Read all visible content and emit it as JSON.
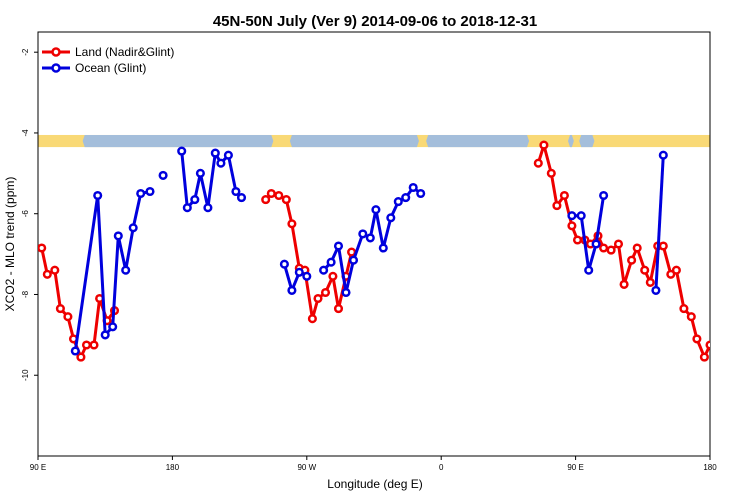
{
  "chart_data": {
    "type": "line",
    "title": "45N-50N July (Ver 9)   2014-09-06 to 2018-12-31",
    "xlabel": "Longitude (deg E)",
    "ylabel": "XCO2 - MLO trend (ppm)",
    "xlim": [
      90,
      450
    ],
    "ylim": [
      -12,
      -1.5
    ],
    "x_ticks": [
      {
        "value": 90,
        "label": "90 E"
      },
      {
        "value": 180,
        "label": "180"
      },
      {
        "value": 270,
        "label": "90 W"
      },
      {
        "value": 360,
        "label": "0"
      },
      {
        "value": 450,
        "label": "90 E"
      },
      {
        "value": 540,
        "label": "180"
      }
    ],
    "y_ticks": [
      {
        "value": -2,
        "label": "-2"
      },
      {
        "value": -4,
        "label": "-4"
      },
      {
        "value": -6,
        "label": "-6"
      },
      {
        "value": -8,
        "label": "-8"
      },
      {
        "value": -10,
        "label": "-10"
      }
    ],
    "legend_position": "top-left",
    "grid": false,
    "map_band": {
      "y_top": -4.05,
      "y_bottom": -4.35,
      "land_color": "#f9d976",
      "ocean_color": "#a4bedb"
    },
    "series": [
      {
        "name": "Land (Nadir&Glint)",
        "color": "#ee0000",
        "segments": [
          [
            [
              92,
              -6.85
            ],
            [
              95,
              -7.5
            ],
            [
              99,
              -7.4
            ],
            [
              102,
              -8.35
            ],
            [
              106,
              -8.55
            ],
            [
              109,
              -9.1
            ],
            [
              113,
              -9.55
            ],
            [
              116,
              -9.25
            ],
            [
              120,
              -9.25
            ],
            [
              123,
              -8.1
            ],
            [
              127,
              -8.65
            ],
            [
              131,
              -8.4
            ]
          ],
          [
            [
              212,
              -5.65
            ],
            [
              215,
              -5.5
            ],
            [
              219,
              -5.55
            ],
            [
              223,
              -5.65
            ],
            [
              226,
              -6.25
            ],
            [
              230,
              -7.35
            ],
            [
              233,
              -7.4
            ],
            [
              237,
              -8.6
            ],
            [
              240,
              -8.1
            ],
            [
              244,
              -7.95
            ],
            [
              248,
              -7.55
            ],
            [
              251,
              -8.35
            ],
            [
              255,
              -7.55
            ],
            [
              258,
              -6.95
            ]
          ],
          [
            [
              358,
              -4.75
            ],
            [
              361,
              -4.3
            ],
            [
              365,
              -5.0
            ],
            [
              368,
              -5.8
            ],
            [
              372,
              -5.55
            ],
            [
              376,
              -6.3
            ],
            [
              379,
              -6.65
            ],
            [
              383,
              -6.65
            ],
            [
              386,
              -6.75
            ],
            [
              390,
              -6.55
            ],
            [
              393,
              -6.85
            ],
            [
              397,
              -6.9
            ],
            [
              401,
              -6.75
            ],
            [
              404,
              -7.75
            ],
            [
              408,
              -7.15
            ],
            [
              411,
              -6.85
            ],
            [
              415,
              -7.4
            ],
            [
              418,
              -7.7
            ],
            [
              422,
              -6.8
            ],
            [
              425,
              -6.8
            ],
            [
              429,
              -7.5
            ],
            [
              432,
              -7.4
            ],
            [
              436,
              -8.35
            ],
            [
              440,
              -8.55
            ],
            [
              443,
              -9.1
            ],
            [
              447,
              -9.55
            ],
            [
              450,
              -9.25
            ]
          ]
        ]
      },
      {
        "name": "Ocean (Glint)",
        "color": "#0000dd",
        "segments": [
          [
            [
              110,
              -9.4
            ],
            [
              122,
              -5.55
            ],
            [
              126,
              -9.0
            ],
            [
              130,
              -8.8
            ],
            [
              133,
              -6.55
            ],
            [
              137,
              -7.4
            ],
            [
              141,
              -6.35
            ],
            [
              145,
              -5.5
            ],
            [
              150,
              -5.45
            ]
          ],
          [
            [
              157,
              -5.05
            ]
          ],
          [
            [
              167,
              -4.45
            ],
            [
              170,
              -5.85
            ],
            [
              174,
              -5.65
            ],
            [
              177,
              -5.0
            ],
            [
              181,
              -5.85
            ],
            [
              185,
              -4.5
            ],
            [
              188,
              -4.75
            ],
            [
              192,
              -4.55
            ],
            [
              196,
              -5.45
            ],
            [
              199,
              -5.6
            ]
          ],
          [
            [
              222,
              -7.25
            ],
            [
              226,
              -7.9
            ],
            [
              230,
              -7.45
            ],
            [
              234,
              -7.55
            ]
          ],
          [
            [
              243,
              -7.4
            ],
            [
              247,
              -7.2
            ],
            [
              251,
              -6.8
            ],
            [
              255,
              -7.95
            ],
            [
              259,
              -7.15
            ],
            [
              264,
              -6.5
            ],
            [
              268,
              -6.6
            ],
            [
              271,
              -5.9
            ],
            [
              275,
              -6.85
            ],
            [
              279,
              -6.1
            ],
            [
              283,
              -5.7
            ],
            [
              287,
              -5.6
            ],
            [
              291,
              -5.35
            ],
            [
              295,
              -5.5
            ]
          ],
          [
            [
              376,
              -6.05
            ],
            [
              381,
              -6.05
            ],
            [
              385,
              -7.4
            ],
            [
              389,
              -6.75
            ],
            [
              393,
              -5.55
            ]
          ],
          [
            [
              421,
              -7.9
            ],
            [
              425,
              -4.55
            ]
          ]
        ]
      }
    ]
  }
}
